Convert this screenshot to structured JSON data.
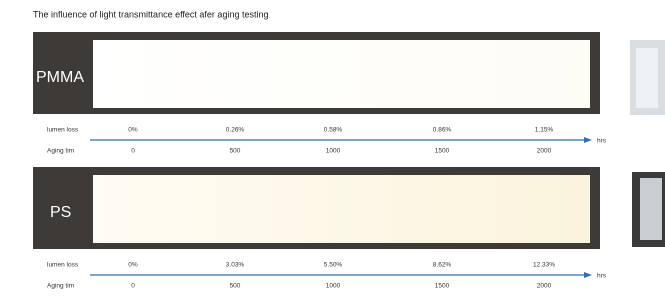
{
  "header": {
    "title": "The influence of light transmittance effect afer aging testing"
  },
  "panels": [
    {
      "material": "PMMA",
      "row_labels": [
        "lumen loss",
        "Aging tim"
      ],
      "lumen_loss": [
        "0%",
        "0.26%",
        "0.58%",
        "0.86%",
        "1.15%"
      ],
      "aging_time": [
        0,
        500,
        1000,
        1500,
        2000
      ],
      "unit": "hrs"
    },
    {
      "material": "PS",
      "row_labels": [
        "lumen loss",
        "Aging tim"
      ],
      "lumen_loss": [
        "0%",
        "3.03%",
        "5.50%",
        "8.62%",
        "12.33%"
      ],
      "aging_time": [
        0,
        500,
        1000,
        1500,
        2000
      ],
      "unit": "hrs"
    }
  ]
}
